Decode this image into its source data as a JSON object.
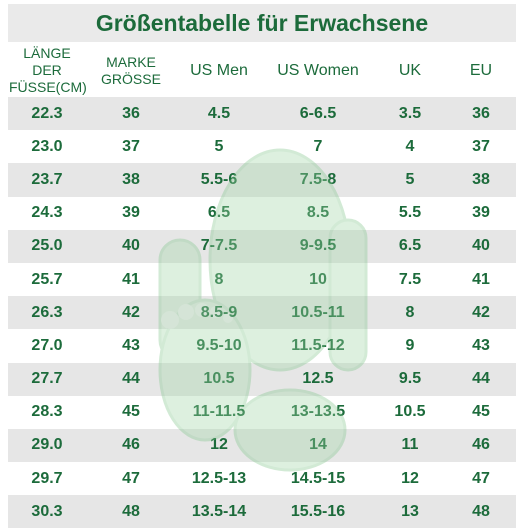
{
  "title": "Größentabelle für Erwachsene",
  "headers": [
    {
      "line1": "LÄNGE DER",
      "line2": "FÜSSE(CM)"
    },
    {
      "line1": "MARKE",
      "line2": "GRÖSSE"
    },
    {
      "line1": "US Men",
      "line2": ""
    },
    {
      "line1": "US Women",
      "line2": ""
    },
    {
      "line1": "UK",
      "line2": ""
    },
    {
      "line1": "EU",
      "line2": ""
    }
  ],
  "rows": [
    [
      "22.3",
      "36",
      "4.5",
      "6-6.5",
      "3.5",
      "36"
    ],
    [
      "23.0",
      "37",
      "5",
      "7",
      "4",
      "37"
    ],
    [
      "23.7",
      "38",
      "5.5-6",
      "7.5-8",
      "5",
      "38"
    ],
    [
      "24.3",
      "39",
      "6.5",
      "8.5",
      "5.5",
      "39"
    ],
    [
      "25.0",
      "40",
      "7-7.5",
      "9-9.5",
      "6.5",
      "40"
    ],
    [
      "25.7",
      "41",
      "8",
      "10",
      "7.5",
      "41"
    ],
    [
      "26.3",
      "42",
      "8.5-9",
      "10.5-11",
      "8",
      "42"
    ],
    [
      "27.0",
      "43",
      "9.5-10",
      "11.5-12",
      "9",
      "43"
    ],
    [
      "27.7",
      "44",
      "10.5",
      "12.5",
      "9.5",
      "44"
    ],
    [
      "28.3",
      "45",
      "11-11.5",
      "13-13.5",
      "10.5",
      "45"
    ],
    [
      "29.0",
      "46",
      "12",
      "14",
      "11",
      "46"
    ],
    [
      "29.7",
      "47",
      "12.5-13",
      "14.5-15",
      "12",
      "47"
    ],
    [
      "30.3",
      "48",
      "13.5-14",
      "15.5-16",
      "13",
      "48"
    ]
  ],
  "colors": {
    "text": "#1c6b3b",
    "stripe": "#dddddd",
    "mascot": "#9fd7a6"
  }
}
